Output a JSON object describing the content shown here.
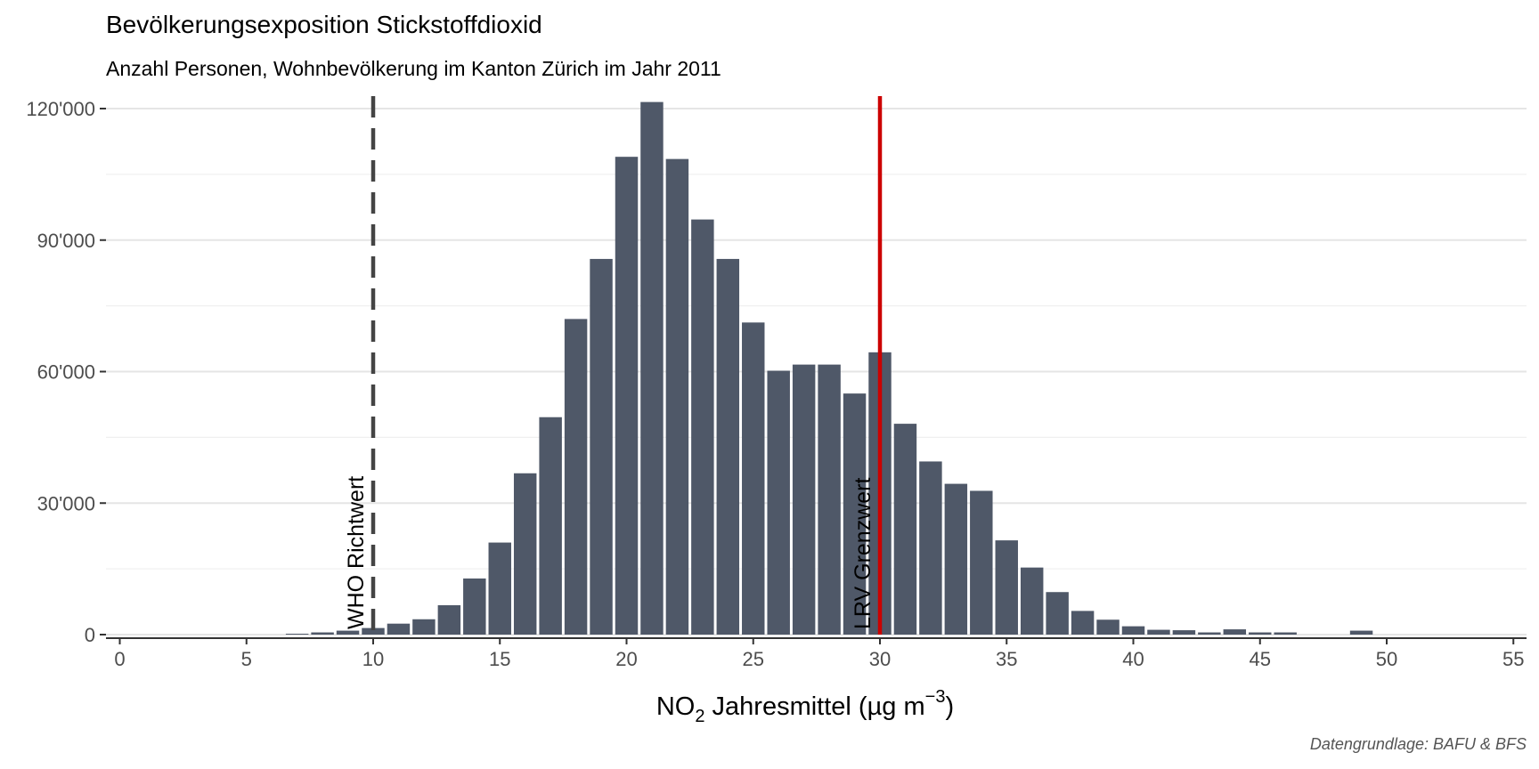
{
  "chart_data": {
    "type": "bar",
    "title": "Bevölkerungsexposition Stickstoffdioxid",
    "subtitle": "Anzahl Personen, Wohnbevölkerung im Kanton Zürich im Jahr 2011",
    "caption": "Datengrundlage: BAFU & BFS",
    "xlabel": {
      "pre": "NO",
      "sub": "2",
      "mid": " Jahresmittel (µg m",
      "sup": "−3",
      "post": ")"
    },
    "ylabel": "",
    "xlim": [
      -0.5,
      55.5
    ],
    "ylim": [
      0,
      120000
    ],
    "x_ticks": [
      0,
      5,
      10,
      15,
      20,
      25,
      30,
      35,
      40,
      45,
      50,
      55
    ],
    "x_tick_labels": [
      "0",
      "5",
      "10",
      "15",
      "20",
      "25",
      "30",
      "35",
      "40",
      "45",
      "50",
      "55"
    ],
    "y_ticks": [
      0,
      30000,
      60000,
      90000,
      120000
    ],
    "y_tick_labels": [
      "0",
      "30'000",
      "60'000",
      "90'000",
      "120'000"
    ],
    "y_minor_ticks": [
      15000,
      45000,
      75000,
      105000
    ],
    "grid": true,
    "bar_color": "#4f5868",
    "x": [
      7,
      8,
      9,
      10,
      11,
      12,
      13,
      14,
      15,
      16,
      17,
      18,
      19,
      20,
      21,
      22,
      23,
      24,
      25,
      26,
      27,
      28,
      29,
      30,
      31,
      32,
      33,
      34,
      35,
      36,
      37,
      38,
      39,
      40,
      41,
      42,
      43,
      44,
      45,
      46,
      47,
      48,
      49
    ],
    "values": [
      200,
      500,
      900,
      1500,
      2500,
      3500,
      6700,
      12800,
      21000,
      36800,
      49600,
      72000,
      85700,
      109000,
      121500,
      108500,
      94700,
      85700,
      71200,
      60200,
      61600,
      61600,
      55000,
      64400,
      48100,
      39500,
      34400,
      32800,
      21500,
      15300,
      9700,
      5400,
      3400,
      1900,
      1100,
      1000,
      500,
      1200,
      500,
      500,
      0,
      0,
      900
    ],
    "reference_lines": [
      {
        "x": 10,
        "label": "WHO Richtwert",
        "color": "#444444",
        "style": "dashed"
      },
      {
        "x": 30,
        "label": "LRV Grenzwert",
        "color": "#cc0000",
        "style": "solid"
      }
    ]
  }
}
